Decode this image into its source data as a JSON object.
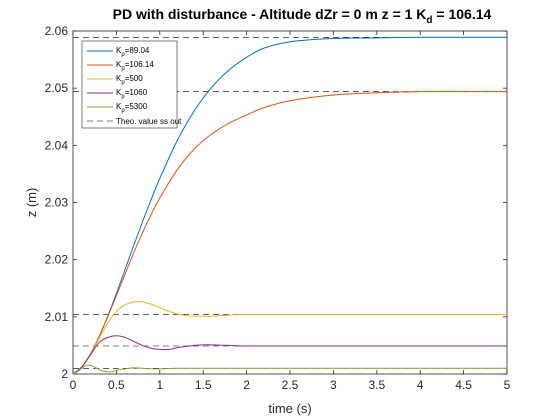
{
  "chart_data": {
    "type": "line",
    "title": {
      "main": "PD with disturbance - Altitude dZr = 0 m  z = 1 K",
      "sub": "d",
      "tail": " = 106.14"
    },
    "xlabel": "time (s)",
    "ylabel": "z (m)",
    "xlim": [
      0,
      5
    ],
    "ylim": [
      2,
      2.06
    ],
    "xticks": [
      0,
      0.5,
      1,
      1.5,
      2,
      2.5,
      3,
      3.5,
      4,
      4.5,
      5
    ],
    "xtick_labels": [
      "0",
      "0.5",
      "1",
      "1.5",
      "2",
      "2.5",
      "3",
      "3.5",
      "4",
      "4.5",
      "5"
    ],
    "yticks": [
      2,
      2.01,
      2.02,
      2.03,
      2.04,
      2.05,
      2.06
    ],
    "ytick_labels": [
      "2",
      "2.01",
      "2.02",
      "2.03",
      "2.04",
      "2.05",
      "2.06"
    ],
    "grid": false,
    "legend_position": "top-left",
    "series": [
      {
        "name": "Kp=89.04",
        "label_main": "K",
        "label_sub": "p",
        "label_tail": "=89.04",
        "color": "#0072BD",
        "x": [
          0,
          0.1,
          0.2,
          0.3,
          0.4,
          0.5,
          0.6,
          0.7,
          0.8,
          0.9,
          1.0,
          1.2,
          1.4,
          1.6,
          1.8,
          2.0,
          2.2,
          2.5,
          3.0,
          3.5,
          4.0,
          4.5,
          5.0
        ],
        "y": [
          2.0,
          2.0012,
          2.0035,
          2.0065,
          2.0101,
          2.0141,
          2.0183,
          2.0225,
          2.0266,
          2.0305,
          2.0342,
          2.0408,
          2.0461,
          2.0502,
          2.0532,
          2.0554,
          2.057,
          2.0581,
          2.0587,
          2.0588,
          2.0589,
          2.0589,
          2.0589
        ]
      },
      {
        "name": "Kp=106.14",
        "label_main": "K",
        "label_sub": "p",
        "label_tail": "=106.14",
        "color": "#D95319",
        "x": [
          0,
          0.1,
          0.2,
          0.3,
          0.4,
          0.5,
          0.6,
          0.7,
          0.8,
          0.9,
          1.0,
          1.2,
          1.4,
          1.6,
          1.8,
          2.0,
          2.2,
          2.5,
          3.0,
          3.5,
          4.0,
          4.5,
          5.0
        ],
        "y": [
          2.0,
          2.0012,
          2.0035,
          2.0065,
          2.01,
          2.0137,
          2.0175,
          2.0212,
          2.0247,
          2.0279,
          2.0308,
          2.0357,
          2.0394,
          2.042,
          2.0439,
          2.0453,
          2.0466,
          2.0478,
          2.0488,
          2.0492,
          2.0494,
          2.0494,
          2.0494
        ]
      },
      {
        "name": "Kp=500",
        "label_main": "K",
        "label_sub": "p",
        "label_tail": "=500",
        "color": "#EDB120",
        "x": [
          0,
          0.1,
          0.2,
          0.3,
          0.4,
          0.5,
          0.6,
          0.7,
          0.8,
          0.9,
          1.0,
          1.1,
          1.2,
          1.3,
          1.4,
          1.5,
          1.6,
          1.8,
          2.0,
          2.5,
          3.0,
          4.0,
          5.0
        ],
        "y": [
          2.0,
          2.0012,
          2.0034,
          2.0062,
          2.0089,
          2.0109,
          2.0121,
          2.0126,
          2.0126,
          2.0122,
          2.0116,
          2.011,
          2.0105,
          2.0102,
          2.0101,
          2.0101,
          2.0101,
          2.0103,
          2.0104,
          2.0104,
          2.0104,
          2.0104,
          2.0104
        ]
      },
      {
        "name": "Kp=1060",
        "label_main": "K",
        "label_sub": "p",
        "label_tail": "=1060",
        "color": "#7E2F8E",
        "x": [
          0,
          0.1,
          0.2,
          0.3,
          0.4,
          0.5,
          0.6,
          0.7,
          0.8,
          0.9,
          1.0,
          1.1,
          1.2,
          1.3,
          1.4,
          1.5,
          1.6,
          1.8,
          2.0,
          2.5,
          3.0,
          4.0,
          5.0
        ],
        "y": [
          2.0,
          2.0012,
          2.0033,
          2.0055,
          2.0064,
          2.0067,
          2.0064,
          2.0057,
          2.005,
          2.0045,
          2.0043,
          2.0043,
          2.0046,
          2.0048,
          2.005,
          2.0051,
          2.0051,
          2.005,
          2.0049,
          2.0049,
          2.0049,
          2.0049,
          2.0049
        ]
      },
      {
        "name": "Kp=5300",
        "label_main": "K",
        "label_sub": "p",
        "label_tail": "=5300",
        "color": "#77AC30",
        "x": [
          0,
          0.05,
          0.1,
          0.15,
          0.2,
          0.25,
          0.3,
          0.35,
          0.4,
          0.45,
          0.5,
          0.55,
          0.6,
          0.7,
          0.8,
          0.9,
          1.0,
          1.2,
          1.5,
          2.0,
          3.0,
          4.0,
          5.0
        ],
        "y": [
          2.0,
          2.0004,
          2.001,
          2.0015,
          2.0015,
          2.0012,
          2.0008,
          2.0005,
          2.0004,
          2.0004,
          2.0006,
          2.0008,
          2.0009,
          2.0011,
          2.001,
          2.0009,
          2.0009,
          2.001,
          2.001,
          2.001,
          2.001,
          2.001,
          2.001
        ]
      }
    ],
    "reference_lines": {
      "name": "Theo. value ss out",
      "label": "Theo. value ss out",
      "color": "#000000",
      "style": "dashed",
      "values": [
        2.0589,
        2.0494,
        2.0104,
        2.0049,
        2.001
      ]
    }
  }
}
